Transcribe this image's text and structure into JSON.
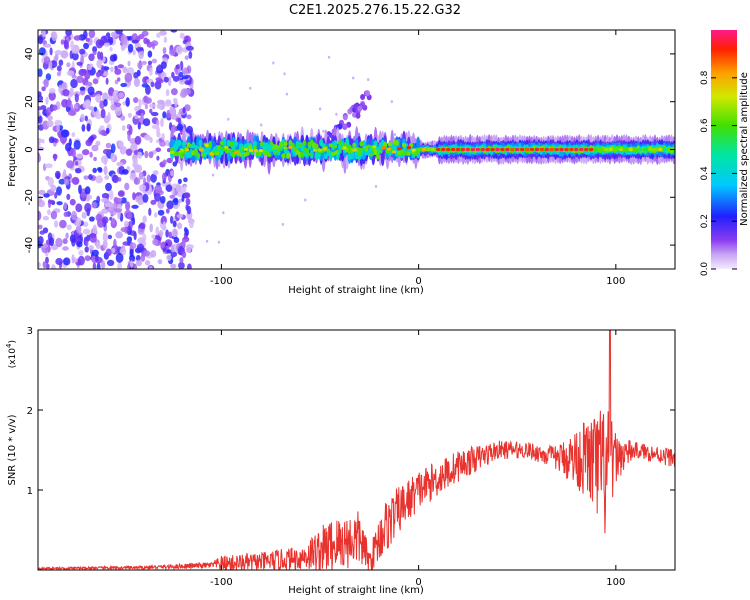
{
  "title": "C2E1.2025.276.15.22.G32",
  "chart_data": [
    {
      "type": "heatmap",
      "xlabel": "Height of straight line (km)",
      "ylabel": "Frequency (Hz)",
      "xlim": [
        -193,
        130
      ],
      "ylim": [
        -50,
        50
      ],
      "xticks": [
        -100,
        0,
        100
      ],
      "yticks": [
        -40,
        -20,
        0,
        20,
        40
      ],
      "colorbar": {
        "label": "Normalized spectral amplitude",
        "range": [
          0,
          1
        ],
        "ticks": [
          "0.0",
          "0.2",
          "0.4",
          "0.6",
          "0.8"
        ],
        "tick_values": [
          0,
          0.2,
          0.4,
          0.6,
          0.8
        ]
      },
      "description_regions": [
        {
          "name": "noise-scatter",
          "x_range": [
            -193,
            -115
          ],
          "y_range": [
            -50,
            50
          ],
          "amplitude": [
            0.05,
            0.25
          ]
        },
        {
          "name": "signal-band",
          "x_range": [
            -125,
            130
          ],
          "y_center": 0,
          "amplitude": [
            0.3,
            1.0
          ]
        },
        {
          "name": "mode-branch",
          "x_range": [
            -50,
            -25
          ],
          "y_range": [
            0,
            22
          ],
          "amplitude": [
            0.1,
            0.2
          ]
        }
      ]
    },
    {
      "type": "line",
      "xlabel": "Height of straight line (km)",
      "ylabel": "SNR (10 * v/v)",
      "y_multiplier": "(x10",
      "y_multiplier_exp": "4",
      "y_multiplier_close": ")",
      "xlim": [
        -193,
        130
      ],
      "ylim": [
        0,
        3
      ],
      "xticks": [
        -100,
        0,
        100
      ],
      "yticks": [
        1,
        2,
        3
      ],
      "series": [
        {
          "name": "SNR",
          "color": "#e8322e",
          "envelope": [
            {
              "x": -193,
              "base": 0.02,
              "amp": 0.01
            },
            {
              "x": -140,
              "base": 0.03,
              "amp": 0.02
            },
            {
              "x": -105,
              "base": 0.06,
              "amp": 0.04
            },
            {
              "x": -100,
              "base": 0.08,
              "amp": 0.1
            },
            {
              "x": -80,
              "base": 0.1,
              "amp": 0.12
            },
            {
              "x": -60,
              "base": 0.15,
              "amp": 0.15
            },
            {
              "x": -45,
              "base": 0.3,
              "amp": 0.35
            },
            {
              "x": -30,
              "base": 0.4,
              "amp": 0.35
            },
            {
              "x": -25,
              "base": 0.1,
              "amp": 0.15
            },
            {
              "x": -18,
              "base": 0.5,
              "amp": 0.35
            },
            {
              "x": -10,
              "base": 0.75,
              "amp": 0.3
            },
            {
              "x": 0,
              "base": 1.0,
              "amp": 0.25
            },
            {
              "x": 20,
              "base": 1.3,
              "amp": 0.2
            },
            {
              "x": 40,
              "base": 1.5,
              "amp": 0.12
            },
            {
              "x": 55,
              "base": 1.5,
              "amp": 0.1
            },
            {
              "x": 70,
              "base": 1.4,
              "amp": 0.15
            },
            {
              "x": 85,
              "base": 1.4,
              "amp": 0.5
            },
            {
              "x": 95,
              "base": 1.2,
              "amp": 0.9
            },
            {
              "x": 100,
              "base": 1.4,
              "amp": 0.3
            },
            {
              "x": 110,
              "base": 1.5,
              "amp": 0.1
            },
            {
              "x": 130,
              "base": 1.4,
              "amp": 0.12
            }
          ],
          "peak": {
            "x": 97,
            "y": 3.0
          }
        }
      ]
    }
  ]
}
